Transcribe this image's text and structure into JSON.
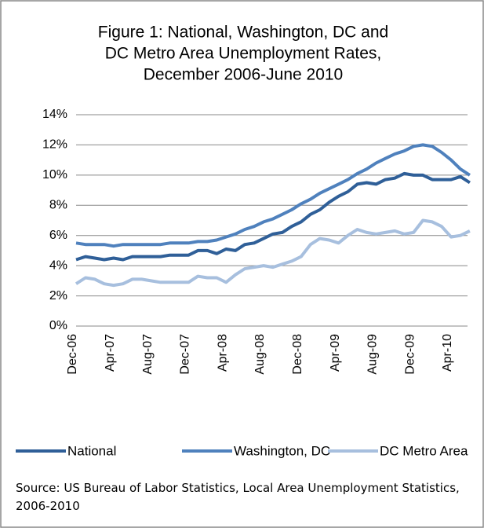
{
  "chart_data": {
    "type": "line",
    "title": [
      "Figure 1: National, Washington, DC and",
      "DC Metro Area Unemployment Rates,",
      "December 2006-June 2010"
    ],
    "source": "Source: US Bureau of Labor Statistics, Local Area Unemployment Statistics, 2006-2010",
    "categories": [
      "Dec-06",
      null,
      null,
      null,
      "Apr-07",
      null,
      null,
      null,
      "Aug-07",
      null,
      null,
      null,
      "Dec-07",
      null,
      null,
      null,
      "Apr-08",
      null,
      null,
      null,
      "Aug-08",
      null,
      null,
      null,
      "Dec-08",
      null,
      null,
      null,
      "Apr-09",
      null,
      null,
      null,
      "Aug-09",
      null,
      null,
      null,
      "Dec-09",
      null,
      null,
      null,
      "Apr-10",
      null,
      null
    ],
    "series": [
      {
        "name": "National",
        "color": "#2f5f98",
        "values": [
          4.4,
          4.6,
          4.5,
          4.4,
          4.5,
          4.4,
          4.6,
          4.6,
          4.6,
          4.6,
          4.7,
          4.7,
          4.7,
          5.0,
          5.0,
          4.8,
          5.1,
          5.0,
          5.4,
          5.5,
          5.8,
          6.1,
          6.2,
          6.6,
          6.9,
          7.4,
          7.7,
          8.2,
          8.6,
          8.9,
          9.4,
          9.5,
          9.4,
          9.7,
          9.8,
          10.1,
          10.0,
          10.0,
          9.7,
          9.7,
          9.7,
          9.9,
          9.5
        ]
      },
      {
        "name": "Washington, DC",
        "color": "#4f81bd",
        "values": [
          5.5,
          5.4,
          5.4,
          5.4,
          5.3,
          5.4,
          5.4,
          5.4,
          5.4,
          5.4,
          5.5,
          5.5,
          5.5,
          5.6,
          5.6,
          5.7,
          5.9,
          6.1,
          6.4,
          6.6,
          6.9,
          7.1,
          7.4,
          7.7,
          8.1,
          8.4,
          8.8,
          9.1,
          9.4,
          9.7,
          10.1,
          10.4,
          10.8,
          11.1,
          11.4,
          11.6,
          11.9,
          12.0,
          11.9,
          11.5,
          11.0,
          10.4,
          10.0
        ]
      },
      {
        "name": "DC Metro Area",
        "color": "#a7bfde",
        "values": [
          2.8,
          3.2,
          3.1,
          2.8,
          2.7,
          2.8,
          3.1,
          3.1,
          3.0,
          2.9,
          2.9,
          2.9,
          2.9,
          3.3,
          3.2,
          3.2,
          2.9,
          3.4,
          3.8,
          3.9,
          4.0,
          3.9,
          4.1,
          4.3,
          4.6,
          5.4,
          5.8,
          5.7,
          5.5,
          6.0,
          6.4,
          6.2,
          6.1,
          6.2,
          6.3,
          6.1,
          6.2,
          7.0,
          6.9,
          6.6,
          5.9,
          6.0,
          6.3
        ]
      }
    ],
    "ylim": [
      0,
      14
    ],
    "yticks": [
      {
        "value": 0,
        "label": "0%"
      },
      {
        "value": 2,
        "label": "2%"
      },
      {
        "value": 4,
        "label": "4%"
      },
      {
        "value": 6,
        "label": "6%"
      },
      {
        "value": 8,
        "label": "8%"
      },
      {
        "value": 10,
        "label": "10%"
      },
      {
        "value": 12,
        "label": "12%"
      },
      {
        "value": 14,
        "label": "14%"
      }
    ],
    "grid": true,
    "legend": "bottom"
  }
}
